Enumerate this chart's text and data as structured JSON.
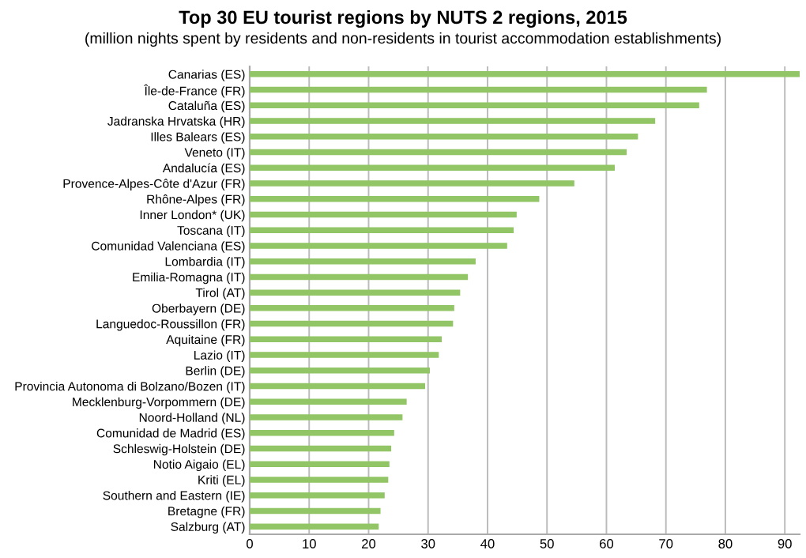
{
  "chart_data": {
    "type": "bar",
    "orientation": "horizontal",
    "title": "Top 30 EU tourist regions by NUTS 2 regions, 2015",
    "subtitle": "(million nights spent by residents and non-residents in tourist accommodation establishments)",
    "categories": [
      "Canarias (ES)",
      "Île-de-France (FR)",
      "Cataluña (ES)",
      "Jadranska Hrvatska (HR)",
      "Illes Balears (ES)",
      "Veneto (IT)",
      "Andalucía (ES)",
      "Provence-Alpes-Côte d'Azur (FR)",
      "Rhône-Alpes (FR)",
      "Inner London* (UK)",
      "Toscana (IT)",
      "Comunidad Valenciana (ES)",
      "Lombardia (IT)",
      "Emilia-Romagna (IT)",
      "Tirol (AT)",
      "Oberbayern (DE)",
      "Languedoc-Roussillon (FR)",
      "Aquitaine (FR)",
      "Lazio (IT)",
      "Berlin (DE)",
      "Provincia Autonoma di Bolzano/Bozen (IT)",
      "Mecklenburg-Vorpommern (DE)",
      "Noord-Holland (NL)",
      "Comunidad de Madrid (ES)",
      "Schleswig-Holstein (DE)",
      "Notio Aigaio (EL)",
      "Kriti (EL)",
      "Southern and Eastern (IE)",
      "Bretagne (FR)",
      "Salzburg (AT)"
    ],
    "values": [
      92.5,
      76.9,
      75.6,
      68.2,
      65.3,
      63.4,
      61.4,
      54.6,
      48.7,
      44.9,
      44.4,
      43.3,
      38.0,
      36.7,
      35.4,
      34.4,
      34.2,
      32.3,
      31.8,
      30.3,
      29.5,
      26.4,
      25.7,
      24.3,
      23.8,
      23.5,
      23.3,
      22.7,
      22.0,
      21.7
    ],
    "color": "#92c565",
    "xlim": [
      0,
      92.5
    ],
    "xticks": [
      0,
      10,
      20,
      30,
      40,
      50,
      60,
      70,
      80,
      90
    ],
    "grid": "x",
    "legend": false
  }
}
